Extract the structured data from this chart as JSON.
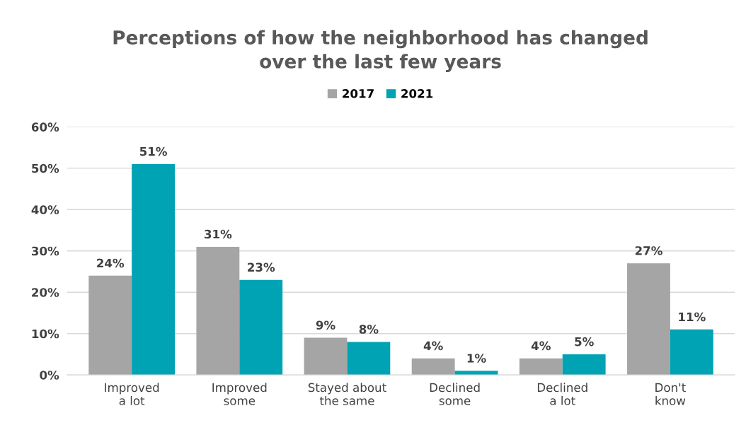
{
  "chart_data": {
    "type": "bar",
    "title": "Perceptions of how the neighborhood has changed\nover the last few years",
    "categories": [
      "Improved\na lot",
      "Improved\nsome",
      "Stayed about\nthe same",
      "Declined\nsome",
      "Declined\na lot",
      "Don't\nknow"
    ],
    "series": [
      {
        "name": "2017",
        "color": "#a5a5a5",
        "values": [
          24,
          31,
          9,
          4,
          4,
          27
        ],
        "value_labels": [
          "24%",
          "31%",
          "9%",
          "4%",
          "4%",
          "27%"
        ]
      },
      {
        "name": "2021",
        "color": "#00a3b4",
        "values": [
          51,
          23,
          8,
          1,
          5,
          11
        ],
        "value_labels": [
          "51%",
          "23%",
          "8%",
          "1%",
          "5%",
          "11%"
        ]
      }
    ],
    "ylim": [
      0,
      60
    ],
    "yticks": [
      {
        "value": 0,
        "label": "0%"
      },
      {
        "value": 10,
        "label": "10%"
      },
      {
        "value": 20,
        "label": "20%"
      },
      {
        "value": 30,
        "label": "30%"
      },
      {
        "value": 40,
        "label": "40%"
      },
      {
        "value": 50,
        "label": "50%"
      },
      {
        "value": 60,
        "label": "60%"
      }
    ],
    "grid": "y",
    "legend": "top"
  }
}
